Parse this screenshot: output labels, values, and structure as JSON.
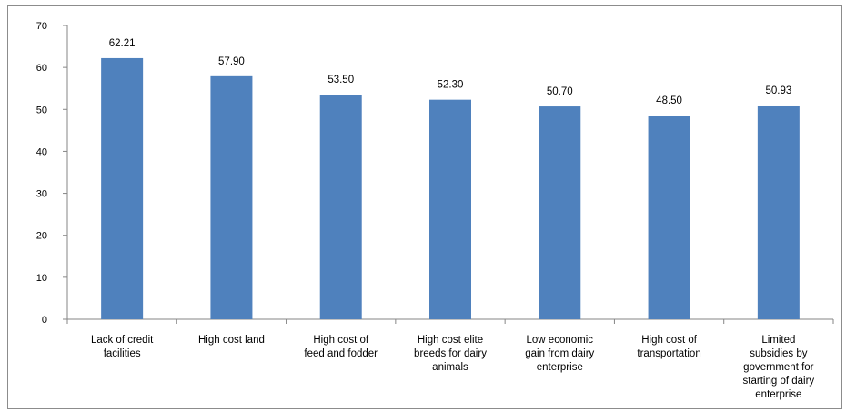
{
  "chart_data": {
    "type": "bar",
    "title": "",
    "xlabel": "",
    "ylabel": "",
    "ylim": [
      0,
      70
    ],
    "ytick_step": 10,
    "yticks": [
      "0",
      "10",
      "20",
      "30",
      "40",
      "50",
      "60",
      "70"
    ],
    "grid": false,
    "legend": "none",
    "bar_color": "#4f81bd",
    "categories": [
      [
        "Lack of credit",
        "facilities"
      ],
      [
        "High cost land"
      ],
      [
        "High cost of",
        "feed and fodder"
      ],
      [
        "High cost elite",
        "breeds for dairy",
        "animals"
      ],
      [
        "Low economic",
        "gain from dairy",
        "enterprise"
      ],
      [
        "High cost of",
        "transportation"
      ],
      [
        "Limited",
        "subsidies by",
        "government for",
        "starting of dairy",
        "enterprise"
      ]
    ],
    "values": [
      62.21,
      57.9,
      53.5,
      52.3,
      50.7,
      48.5,
      50.93
    ],
    "data_labels": [
      "62.21",
      "57.90",
      "53.50",
      "52.30",
      "50.70",
      "48.50",
      "50.93"
    ]
  }
}
